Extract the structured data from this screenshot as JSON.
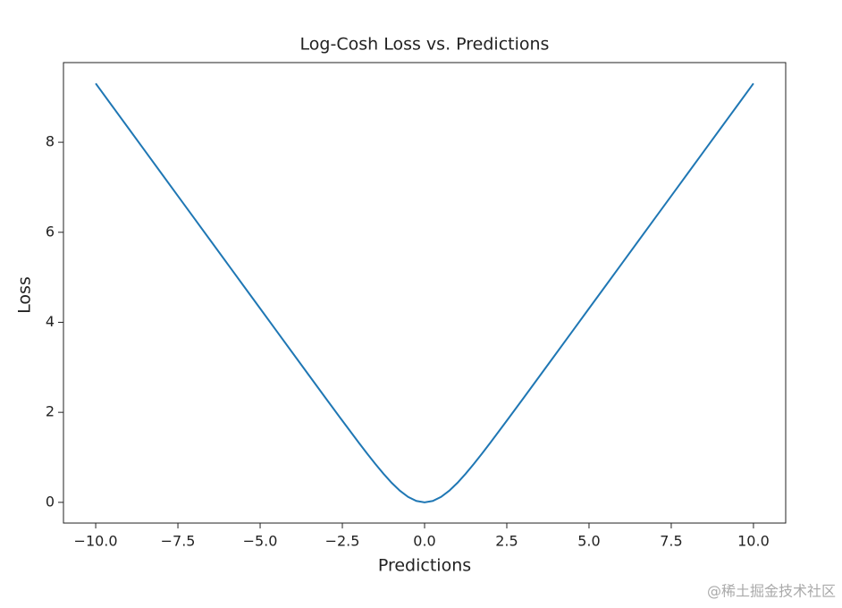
{
  "chart_data": {
    "type": "line",
    "title": "Log-Cosh Loss vs. Predictions",
    "x_label": "Predictions",
    "y_label": "Loss",
    "x": [
      -10,
      -9.5,
      -9,
      -8.5,
      -8,
      -7.5,
      -7,
      -6.5,
      -6,
      -5.5,
      -5,
      -4.5,
      -4,
      -3.5,
      -3,
      -2.5,
      -2,
      -1.75,
      -1.5,
      -1.25,
      -1,
      -0.75,
      -0.5,
      -0.25,
      0,
      0.25,
      0.5,
      0.75,
      1,
      1.25,
      1.5,
      1.75,
      2,
      2.5,
      3,
      3.5,
      4,
      4.5,
      5,
      5.5,
      6,
      6.5,
      7,
      7.5,
      8,
      8.5,
      9,
      9.5,
      10
    ],
    "series": [
      {
        "name": "Log-Cosh",
        "color": "#1f77b4",
        "values": [
          9.307,
          8.807,
          8.307,
          7.807,
          7.307,
          6.807,
          6.307,
          5.807,
          5.307,
          4.807,
          4.307,
          3.807,
          3.307,
          2.808,
          2.309,
          1.814,
          1.325,
          1.087,
          0.855,
          0.636,
          0.434,
          0.258,
          0.12,
          0.031,
          0,
          0.031,
          0.12,
          0.258,
          0.434,
          0.636,
          0.855,
          1.087,
          1.325,
          1.814,
          2.309,
          2.808,
          3.307,
          3.807,
          4.307,
          4.807,
          5.307,
          5.807,
          6.307,
          6.807,
          7.307,
          7.807,
          8.307,
          8.807,
          9.307
        ]
      }
    ],
    "xlim": [
      -10.98,
      10.98
    ],
    "ylim": [
      -0.46,
      9.77
    ],
    "xticks": [
      {
        "value": -10,
        "label": "−10.0"
      },
      {
        "value": -7.5,
        "label": "−7.5"
      },
      {
        "value": -5,
        "label": "−5.0"
      },
      {
        "value": -2.5,
        "label": "−2.5"
      },
      {
        "value": 0,
        "label": "0.0"
      },
      {
        "value": 2.5,
        "label": "2.5"
      },
      {
        "value": 5,
        "label": "5.0"
      },
      {
        "value": 7.5,
        "label": "7.5"
      },
      {
        "value": 10,
        "label": "10.0"
      }
    ],
    "yticks": [
      0,
      2,
      4,
      6,
      8
    ],
    "grid": false,
    "watermark": "@稀土掘金技术社区"
  }
}
